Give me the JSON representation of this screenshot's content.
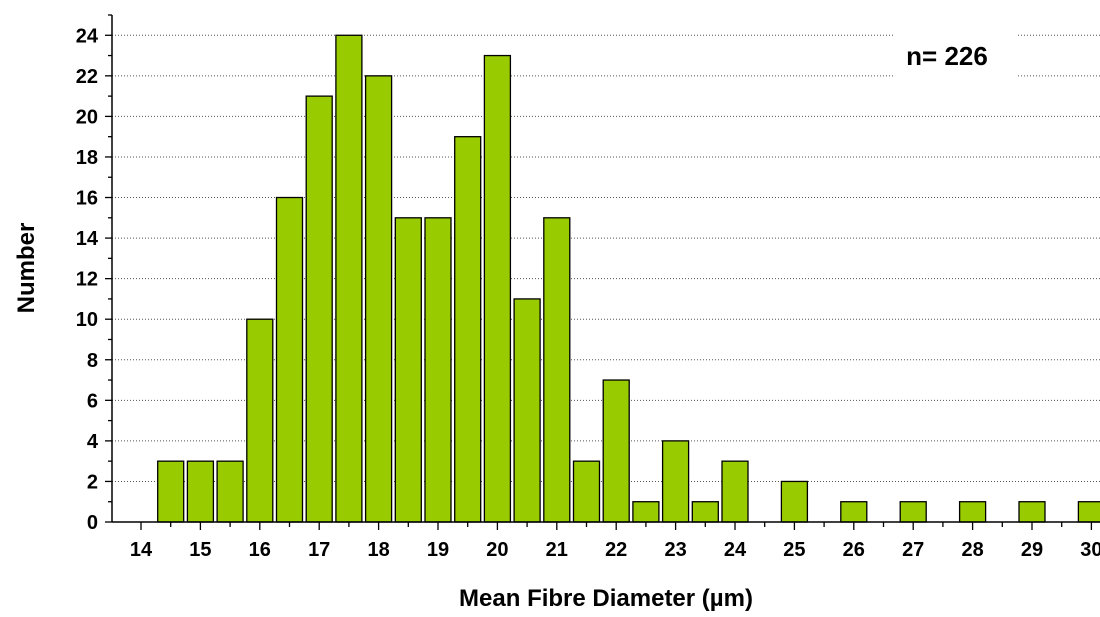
{
  "chart_data": {
    "type": "bar",
    "xlabel": "Mean Fibre Diameter (µm)",
    "ylabel": "Number",
    "annotation": "n= 226",
    "x": [
      14.5,
      15,
      15.5,
      16,
      16.5,
      17,
      17.5,
      18,
      18.5,
      19,
      19.5,
      20,
      20.5,
      21,
      21.5,
      22,
      22.5,
      23,
      23.5,
      24,
      25,
      26,
      27,
      28,
      29,
      30
    ],
    "values": [
      3,
      3,
      3,
      10,
      16,
      21,
      24,
      22,
      15,
      15,
      19,
      23,
      11,
      15,
      3,
      7,
      1,
      4,
      1,
      3,
      2,
      1,
      1,
      1,
      1,
      1
    ],
    "xticks": [
      "14",
      "15",
      "16",
      "17",
      "18",
      "19",
      "20",
      "21",
      "22",
      "23",
      "24",
      "25",
      "26",
      "27",
      "28",
      "29",
      "30"
    ],
    "yticks": [
      "0",
      "2",
      "4",
      "6",
      "8",
      "10",
      "12",
      "14",
      "16",
      "18",
      "20",
      "22",
      "24"
    ],
    "xlim": [
      14,
      30.5
    ],
    "ylim": [
      0,
      25
    ],
    "grid": "horizontal",
    "bar_color": "#99cc00",
    "bar_edge_color": "#000000"
  }
}
